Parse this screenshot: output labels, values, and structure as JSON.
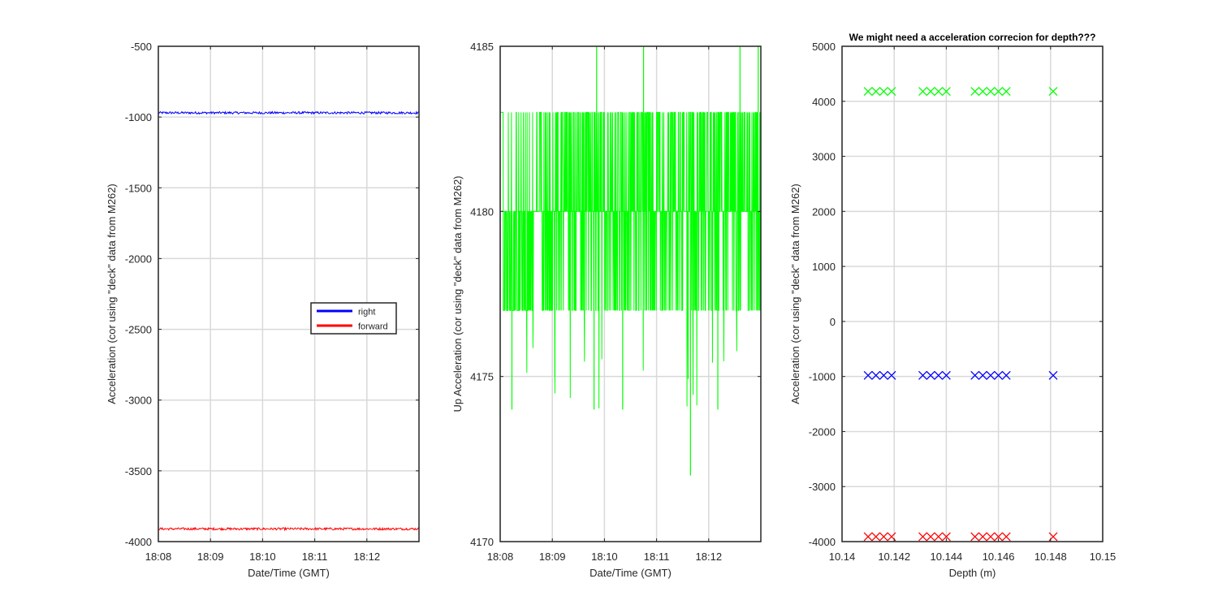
{
  "chart_data": [
    {
      "type": "line",
      "title": "",
      "xlabel": "Date/Time (GMT)",
      "ylabel": "Acceleration (cor using \"deck\" data from M262)",
      "x_ticks": [
        "18:08",
        "18:09",
        "18:10",
        "18:11",
        "18:12"
      ],
      "xlim": [
        "18:08",
        "18:13"
      ],
      "ylim": [
        -4000,
        -500
      ],
      "y_ticks": [
        -4000,
        -3500,
        -3000,
        -2500,
        -2000,
        -1500,
        -1000,
        -500
      ],
      "grid": true,
      "legend_position": "center-right",
      "series": [
        {
          "name": "right",
          "color": "#0000ff",
          "approx_value": -970,
          "noise": 8
        },
        {
          "name": "forward",
          "color": "#ff0000",
          "approx_value": -3910,
          "noise": 8
        }
      ]
    },
    {
      "type": "line",
      "title": "",
      "xlabel": "Date/Time (GMT)",
      "ylabel": "Up Acceleration (cor using \"deck\" data from M262)",
      "x_ticks": [
        "18:08",
        "18:09",
        "18:10",
        "18:11",
        "18:12"
      ],
      "xlim": [
        "18:08",
        "18:13"
      ],
      "ylim": [
        4170,
        4185
      ],
      "y_ticks": [
        4170,
        4175,
        4180,
        4185
      ],
      "grid": true,
      "series": [
        {
          "color": "#00ff00",
          "levels": [
            4177,
            4180,
            4183
          ],
          "spike_min": 4172,
          "spike_max": 4185
        }
      ]
    },
    {
      "type": "scatter",
      "title": "We might need a acceleration correcion for depth???",
      "xlabel": "Depth (m)",
      "ylabel": "Acceleration (cor using \"deck\" data from M262)",
      "xlim": [
        10.14,
        10.15
      ],
      "x_ticks": [
        "10.14",
        "10.142",
        "10.144",
        "10.146",
        "10.148",
        "10.15"
      ],
      "ylim": [
        -4000,
        5000
      ],
      "y_ticks": [
        -4000,
        -3000,
        -2000,
        -1000,
        0,
        1000,
        2000,
        3000,
        4000,
        5000
      ],
      "grid": true,
      "marker": "x",
      "depths": [
        10.141,
        10.1413,
        10.1416,
        10.1419,
        10.1431,
        10.1434,
        10.1437,
        10.144,
        10.1451,
        10.1454,
        10.1457,
        10.146,
        10.1463,
        10.1481
      ],
      "series": [
        {
          "color": "#00ff00",
          "value": 4180
        },
        {
          "color": "#0000ff",
          "value": -980
        },
        {
          "color": "#ff0000",
          "value": -3910
        }
      ]
    }
  ]
}
